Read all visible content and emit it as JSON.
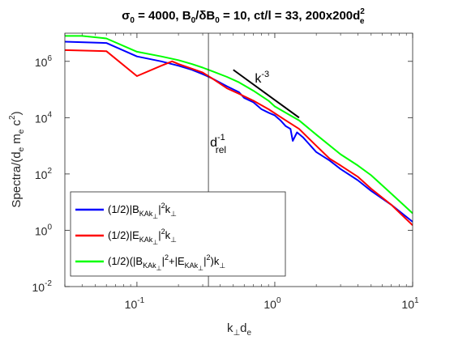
{
  "chart_data": {
    "type": "line",
    "scale": {
      "x": "log",
      "y": "log"
    },
    "xlim": [
      0.03,
      10
    ],
    "ylim": [
      0.01,
      10000000
    ],
    "xticks": [
      {
        "value": 0.1,
        "base": "10",
        "exp": "-1"
      },
      {
        "value": 1,
        "base": "10",
        "exp": "0"
      },
      {
        "value": 10,
        "base": "10",
        "exp": "1"
      }
    ],
    "yticks": [
      {
        "value": 0.01,
        "base": "10",
        "exp": "-2"
      },
      {
        "value": 1,
        "base": "10",
        "exp": "0"
      },
      {
        "value": 100,
        "base": "10",
        "exp": "2"
      },
      {
        "value": 10000,
        "base": "10",
        "exp": "4"
      },
      {
        "value": 1000000,
        "base": "10",
        "exp": "6"
      }
    ],
    "grid": false,
    "legend_position": "bottom-left",
    "title": {
      "sigma": "σ",
      "sigma_sub": "0",
      "p1": " = 4000, B",
      "b_sub": "0",
      "p2": "/δB",
      "db_sub": "0",
      "p3": " = 10, ct/l = 33, 200x200d",
      "d_sup": "2",
      "d_sub": "e"
    },
    "xlabel": {
      "k": "k",
      "perp": "⊥",
      "d": "d",
      "e": "e"
    },
    "ylabel": {
      "pre": "Spectra/(d",
      "e1": "e",
      "m": " m",
      "e2": "e",
      "c": " c",
      "two": "2",
      "close": ")"
    },
    "annotations": {
      "drel": {
        "d": "d",
        "sup": "-1",
        "sub": "rel",
        "x": 0.33
      },
      "slope": {
        "k": "k",
        "sup": "-3",
        "x": [
          0.5,
          1.5
        ],
        "y": [
          500000,
          10000
        ]
      }
    },
    "series": [
      {
        "color": "#0000ff",
        "legend": {
          "pre": "(1/2)|B",
          "sub": "KAk",
          "subsub": "⊥",
          "post": "|",
          "sup": "2",
          "k": "k",
          "ksub": "⊥"
        },
        "points": [
          [
            0.03,
            5000000
          ],
          [
            0.06,
            4500000
          ],
          [
            0.1,
            1500000
          ],
          [
            0.15,
            1000000
          ],
          [
            0.2,
            700000
          ],
          [
            0.25,
            500000
          ],
          [
            0.3,
            350000
          ],
          [
            0.35,
            250000
          ],
          [
            0.45,
            130000
          ],
          [
            0.55,
            80000
          ],
          [
            0.6,
            50000
          ],
          [
            0.7,
            35000
          ],
          [
            0.8,
            20000
          ],
          [
            0.9,
            15000
          ],
          [
            1.0,
            12000
          ],
          [
            1.1,
            8000
          ],
          [
            1.2,
            5000
          ],
          [
            1.3,
            4000
          ],
          [
            1.35,
            1500
          ],
          [
            1.45,
            3000
          ],
          [
            1.6,
            2000
          ],
          [
            2.0,
            600
          ],
          [
            2.5,
            300
          ],
          [
            3.0,
            150
          ],
          [
            4.0,
            60
          ],
          [
            5.0,
            25
          ],
          [
            7.0,
            8
          ],
          [
            10.0,
            2
          ]
        ]
      },
      {
        "color": "#ff0000",
        "legend": {
          "pre": "(1/2)|E",
          "sub": "KAk",
          "subsub": "⊥",
          "post": "|",
          "sup": "2",
          "k": "k",
          "ksub": "⊥"
        },
        "points": [
          [
            0.03,
            2500000
          ],
          [
            0.06,
            2300000
          ],
          [
            0.1,
            300000
          ],
          [
            0.15,
            700000
          ],
          [
            0.18,
            1000000
          ],
          [
            0.2,
            800000
          ],
          [
            0.25,
            550000
          ],
          [
            0.3,
            400000
          ],
          [
            0.35,
            250000
          ],
          [
            0.45,
            110000
          ],
          [
            0.55,
            70000
          ],
          [
            0.7,
            40000
          ],
          [
            0.9,
            20000
          ],
          [
            1.2,
            8000
          ],
          [
            1.5,
            4000
          ],
          [
            2.0,
            1000
          ],
          [
            2.5,
            350
          ],
          [
            3.0,
            200
          ],
          [
            4.0,
            80
          ],
          [
            5.0,
            30
          ],
          [
            7.0,
            8
          ],
          [
            10.0,
            1.5
          ]
        ]
      },
      {
        "color": "#00ff00",
        "legend": {
          "pre": "(1/2)(|B",
          "sub": "KAk",
          "subsub": "⊥",
          "mid": "|",
          "sup": "2",
          "plus": "+|E",
          "sub2": "KAk",
          "subsub2": "⊥",
          "post2": "|",
          "sup2": "2",
          "close": ")k",
          "ksub": "⊥"
        },
        "points": [
          [
            0.03,
            8000000
          ],
          [
            0.04,
            8000000
          ],
          [
            0.06,
            6500000
          ],
          [
            0.1,
            2200000
          ],
          [
            0.15,
            1500000
          ],
          [
            0.2,
            1100000
          ],
          [
            0.25,
            800000
          ],
          [
            0.3,
            600000
          ],
          [
            0.35,
            450000
          ],
          [
            0.45,
            280000
          ],
          [
            0.55,
            180000
          ],
          [
            0.7,
            90000
          ],
          [
            0.9,
            40000
          ],
          [
            1.0,
            25000
          ],
          [
            1.2,
            15000
          ],
          [
            1.5,
            8000
          ],
          [
            2.0,
            2500
          ],
          [
            3.0,
            500
          ],
          [
            4.0,
            200
          ],
          [
            5.0,
            90
          ],
          [
            7.0,
            20
          ],
          [
            10.0,
            4
          ]
        ]
      }
    ]
  }
}
